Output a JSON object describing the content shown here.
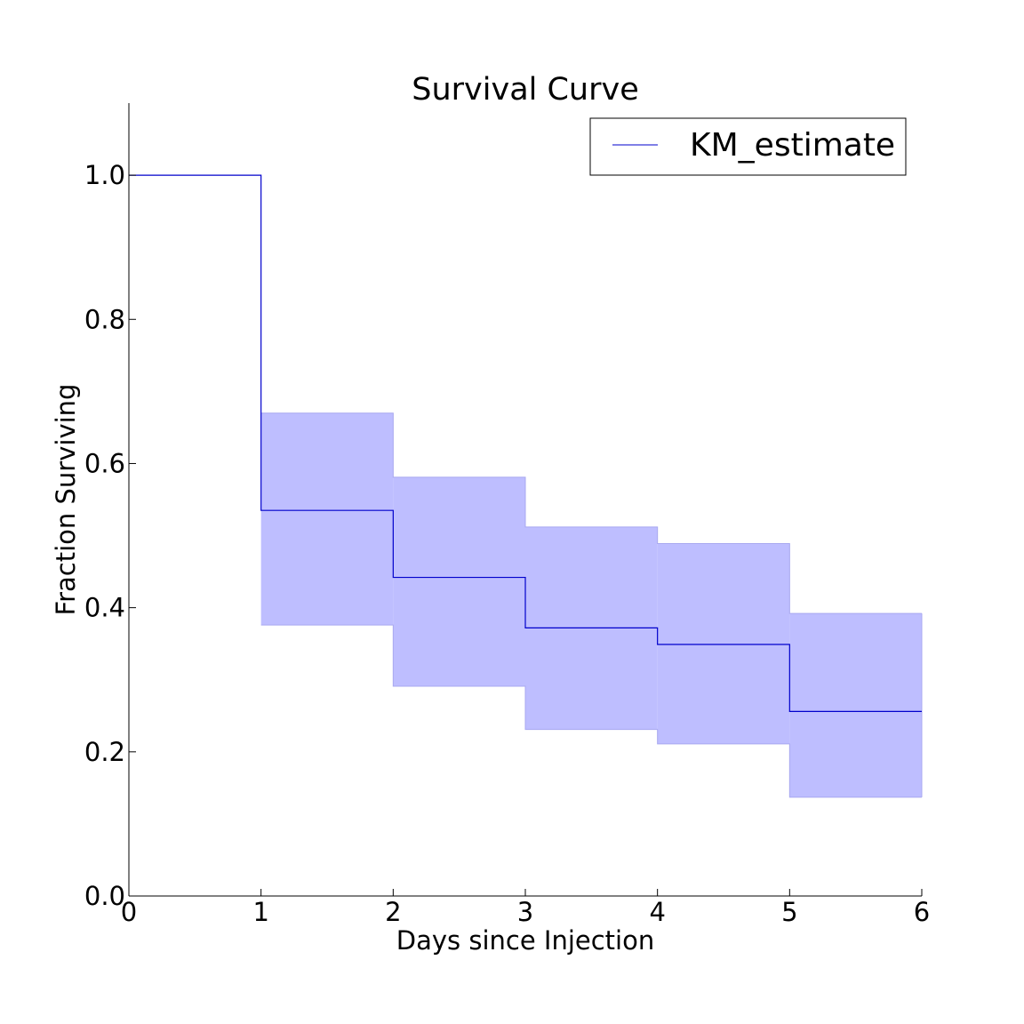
{
  "chart_data": {
    "type": "line",
    "title": "Survival Curve",
    "xlabel": "Days since Injection",
    "ylabel": "Fraction Surviving",
    "xlim": [
      0,
      6
    ],
    "ylim": [
      0,
      1.1
    ],
    "x_ticks": [
      "0",
      "1",
      "2",
      "3",
      "4",
      "5",
      "6"
    ],
    "y_ticks": [
      "0.0",
      "0.2",
      "0.4",
      "0.6",
      "0.8",
      "1.0"
    ],
    "grid": false,
    "legend_position": "top-right",
    "step": "post",
    "series": [
      {
        "name": "KM_estimate",
        "color": "#0000cc",
        "x": [
          0,
          1,
          2,
          3,
          4,
          5,
          6
        ],
        "y": [
          1.0,
          0.535,
          0.442,
          0.372,
          0.349,
          0.256,
          0.256
        ]
      }
    ],
    "confidence_band": {
      "color": "#bebeff",
      "edge_color": "#a8a8f0",
      "x": [
        1,
        2,
        3,
        4,
        5,
        6
      ],
      "lower": [
        0.376,
        0.291,
        0.231,
        0.211,
        0.137,
        0.137
      ],
      "upper": [
        0.67,
        0.581,
        0.512,
        0.489,
        0.392,
        0.392
      ]
    }
  }
}
